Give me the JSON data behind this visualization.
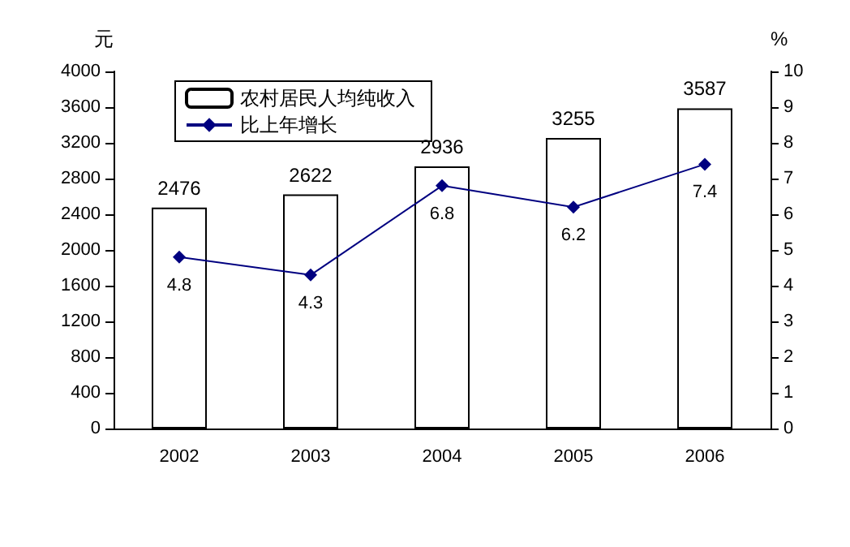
{
  "chart_data": {
    "type": "bar",
    "ylabel": "元",
    "y2label": "%",
    "categories": [
      "2002",
      "2003",
      "2004",
      "2005",
      "2006"
    ],
    "series": [
      {
        "name": "农村居民人均纯收入",
        "color": "#ffffff",
        "values": [
          2476,
          2622,
          2936,
          3255,
          3587
        ]
      },
      {
        "name": "比上年增长",
        "type": "line",
        "axis": "y2",
        "color": "#000080",
        "marker": "diamond",
        "values": [
          4.8,
          4.3,
          6.8,
          6.2,
          7.4
        ]
      }
    ],
    "ylim": [
      0,
      4000
    ],
    "yticks": [
      0,
      400,
      800,
      1200,
      1600,
      2000,
      2400,
      2800,
      3200,
      3600,
      4000
    ],
    "y2lim": [
      0,
      10
    ],
    "y2ticks": [
      0,
      1,
      2,
      3,
      4,
      5,
      6,
      7,
      8,
      9,
      10
    ],
    "data_labels": true,
    "legend": "top left",
    "grid": false
  }
}
